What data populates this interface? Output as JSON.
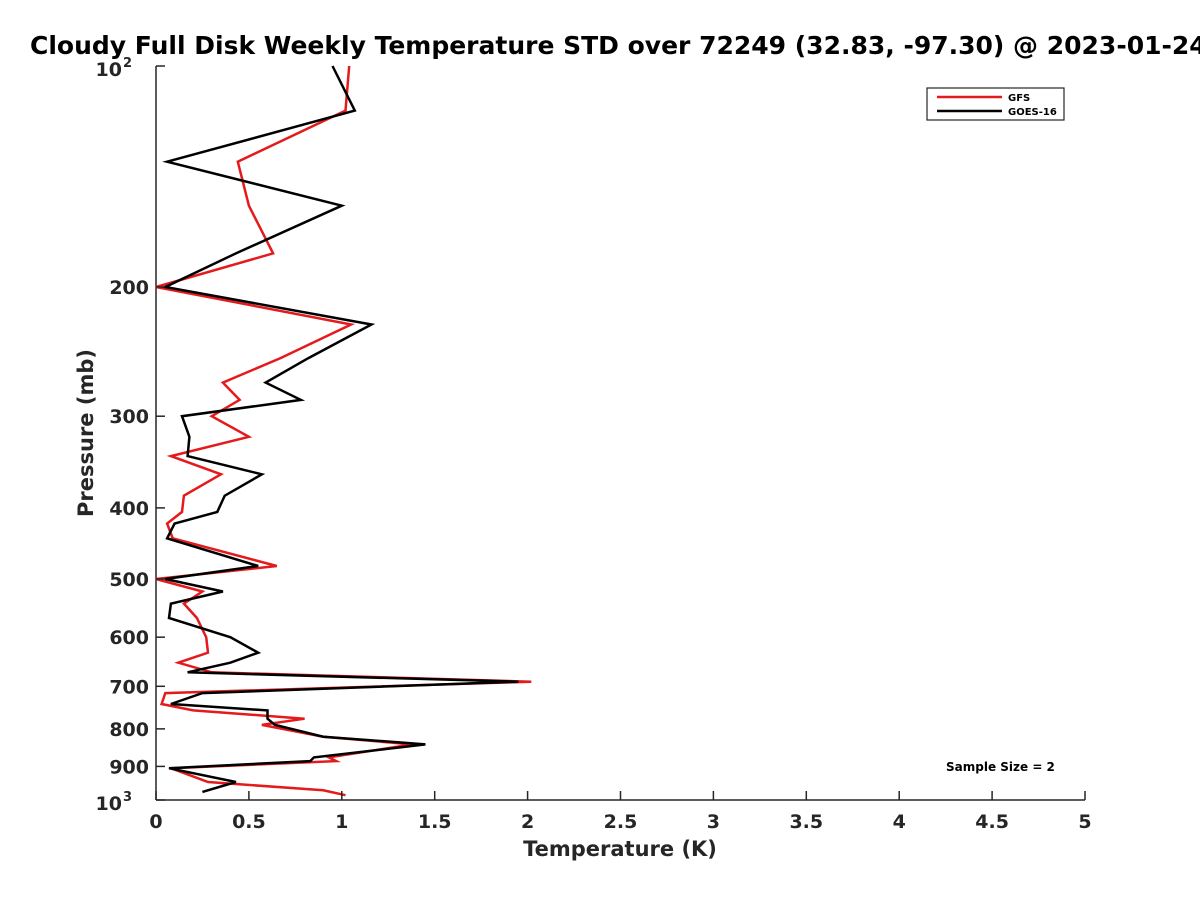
{
  "chart_data": {
    "type": "line",
    "title": "Cloudy Full Disk Weekly Temperature STD over 72249 (32.83, -97.30) @ 2023-01-24",
    "xlabel": "Temperature (K)",
    "ylabel": "Pressure (mb)",
    "xlim": [
      0,
      5
    ],
    "ylim": [
      100,
      1000
    ],
    "y_scale": "log",
    "y_reversed": true,
    "grid": false,
    "legend_position": "top-right",
    "x_ticks": [
      {
        "value": 0,
        "label": "0"
      },
      {
        "value": 0.5,
        "label": "0.5"
      },
      {
        "value": 1,
        "label": "1"
      },
      {
        "value": 1.5,
        "label": "1.5"
      },
      {
        "value": 2,
        "label": "2"
      },
      {
        "value": 2.5,
        "label": "2.5"
      },
      {
        "value": 3,
        "label": "3"
      },
      {
        "value": 3.5,
        "label": "3.5"
      },
      {
        "value": 4,
        "label": "4"
      },
      {
        "value": 4.5,
        "label": "4.5"
      },
      {
        "value": 5,
        "label": "5"
      }
    ],
    "y_ticks": [
      {
        "value": 100,
        "label": "10",
        "sup": "2"
      },
      {
        "value": 200,
        "label": "200",
        "sup": ""
      },
      {
        "value": 300,
        "label": "300",
        "sup": ""
      },
      {
        "value": 400,
        "label": "400",
        "sup": ""
      },
      {
        "value": 500,
        "label": "500",
        "sup": ""
      },
      {
        "value": 600,
        "label": "600",
        "sup": ""
      },
      {
        "value": 700,
        "label": "700",
        "sup": ""
      },
      {
        "value": 800,
        "label": "800",
        "sup": ""
      },
      {
        "value": 900,
        "label": "900",
        "sup": ""
      },
      {
        "value": 1000,
        "label": "10",
        "sup": "3"
      }
    ],
    "annotation": "Sample Size = 2",
    "series": [
      {
        "name": "GFS",
        "color": "#e41a1c",
        "points": [
          [
            1.04,
            100
          ],
          [
            1.02,
            115
          ],
          [
            0.44,
            135
          ],
          [
            0.5,
            155
          ],
          [
            0.63,
            180
          ],
          [
            0.0,
            200
          ],
          [
            1.05,
            225
          ],
          [
            0.67,
            250
          ],
          [
            0.36,
            270
          ],
          [
            0.45,
            285
          ],
          [
            0.3,
            300
          ],
          [
            0.5,
            320
          ],
          [
            0.08,
            340
          ],
          [
            0.35,
            360
          ],
          [
            0.15,
            385
          ],
          [
            0.14,
            405
          ],
          [
            0.06,
            420
          ],
          [
            0.09,
            440
          ],
          [
            0.65,
            480
          ],
          [
            0.0,
            500
          ],
          [
            0.25,
            520
          ],
          [
            0.15,
            540
          ],
          [
            0.22,
            565
          ],
          [
            0.27,
            600
          ],
          [
            0.28,
            630
          ],
          [
            0.12,
            650
          ],
          [
            0.3,
            670
          ],
          [
            2.02,
            690
          ],
          [
            0.05,
            715
          ],
          [
            0.03,
            740
          ],
          [
            0.2,
            755
          ],
          [
            0.8,
            775
          ],
          [
            0.57,
            790
          ],
          [
            0.9,
            820
          ],
          [
            1.38,
            840
          ],
          [
            0.93,
            875
          ],
          [
            0.97,
            885
          ],
          [
            0.08,
            905
          ],
          [
            0.28,
            945
          ],
          [
            0.9,
            970
          ],
          [
            1.02,
            985
          ]
        ]
      },
      {
        "name": "GOES-16",
        "color": "#000000",
        "points": [
          [
            0.95,
            100
          ],
          [
            1.07,
            115
          ],
          [
            0.06,
            135
          ],
          [
            1.0,
            155
          ],
          [
            0.43,
            180
          ],
          [
            0.05,
            200
          ],
          [
            1.16,
            225
          ],
          [
            0.82,
            250
          ],
          [
            0.59,
            270
          ],
          [
            0.78,
            285
          ],
          [
            0.14,
            300
          ],
          [
            0.18,
            320
          ],
          [
            0.17,
            340
          ],
          [
            0.57,
            360
          ],
          [
            0.37,
            385
          ],
          [
            0.33,
            405
          ],
          [
            0.1,
            420
          ],
          [
            0.06,
            440
          ],
          [
            0.55,
            480
          ],
          [
            0.05,
            500
          ],
          [
            0.36,
            520
          ],
          [
            0.08,
            540
          ],
          [
            0.07,
            565
          ],
          [
            0.4,
            600
          ],
          [
            0.55,
            630
          ],
          [
            0.4,
            650
          ],
          [
            0.17,
            670
          ],
          [
            1.95,
            690
          ],
          [
            0.25,
            715
          ],
          [
            0.08,
            740
          ],
          [
            0.6,
            755
          ],
          [
            0.6,
            775
          ],
          [
            0.64,
            790
          ],
          [
            0.9,
            820
          ],
          [
            1.45,
            840
          ],
          [
            0.85,
            875
          ],
          [
            0.83,
            885
          ],
          [
            0.07,
            905
          ],
          [
            0.43,
            945
          ],
          [
            0.25,
            975
          ]
        ]
      }
    ]
  }
}
